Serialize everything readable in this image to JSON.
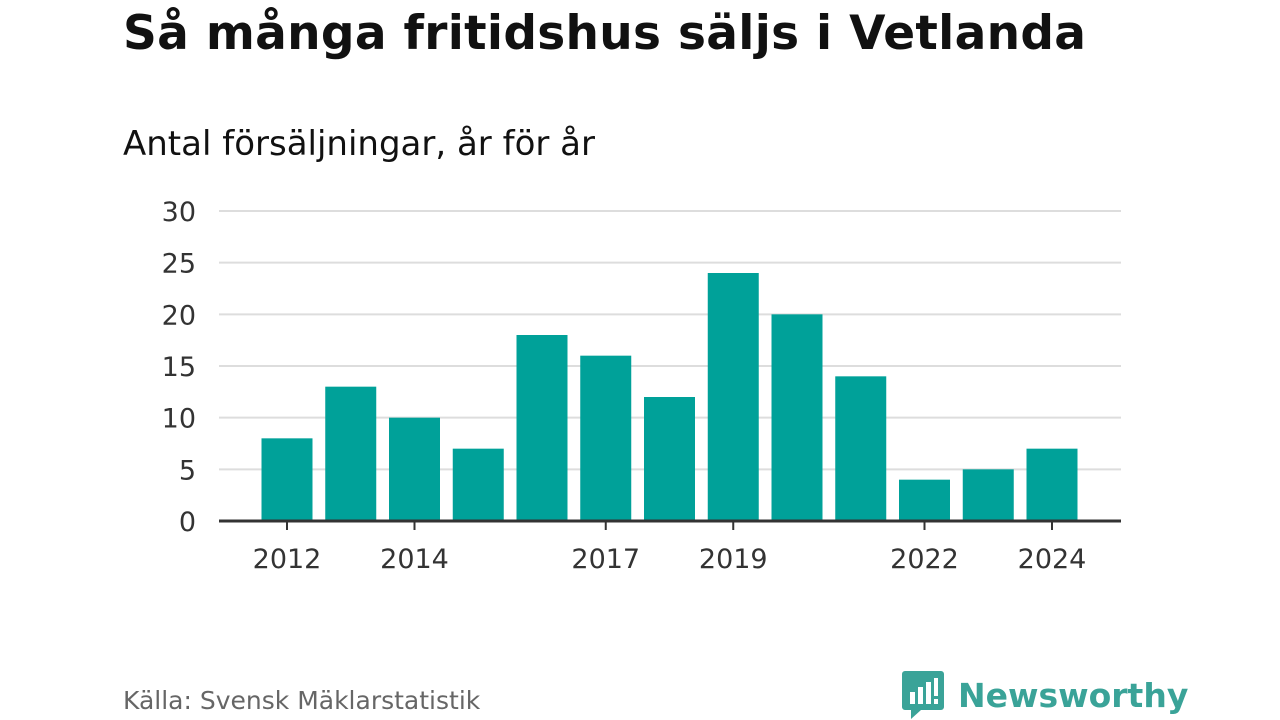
{
  "header": {
    "title": "Så många fritidshus säljs i Vetlanda",
    "subtitle": "Antal försäljningar, år för år"
  },
  "footer": {
    "source": "Källa: Svensk Mäklarstatistik",
    "brand": "Newsworthy"
  },
  "colors": {
    "bar": "#00a199",
    "grid": "#dddddd",
    "axis": "#333333",
    "tick_text": "#333333",
    "brand": "#3aa398"
  },
  "icons": {
    "brand_logo": "newsworthy-logo-icon"
  },
  "chart_data": {
    "type": "bar",
    "title": "Så många fritidshus säljs i Vetlanda",
    "subtitle": "Antal försäljningar, år för år",
    "xlabel": "",
    "ylabel": "",
    "categories": [
      "2012",
      "2013",
      "2014",
      "2015",
      "2016",
      "2017",
      "2018",
      "2019",
      "2020",
      "2021",
      "2022",
      "2023",
      "2024"
    ],
    "values": [
      8,
      13,
      10,
      7,
      18,
      16,
      12,
      24,
      20,
      14,
      4,
      5,
      7
    ],
    "x_tick_labels": [
      "2012",
      "2014",
      "2017",
      "2019",
      "2022",
      "2024"
    ],
    "y_ticks": [
      0,
      5,
      10,
      15,
      20,
      25,
      30
    ],
    "ylim": [
      0,
      30
    ],
    "grid": true,
    "legend": "none"
  }
}
